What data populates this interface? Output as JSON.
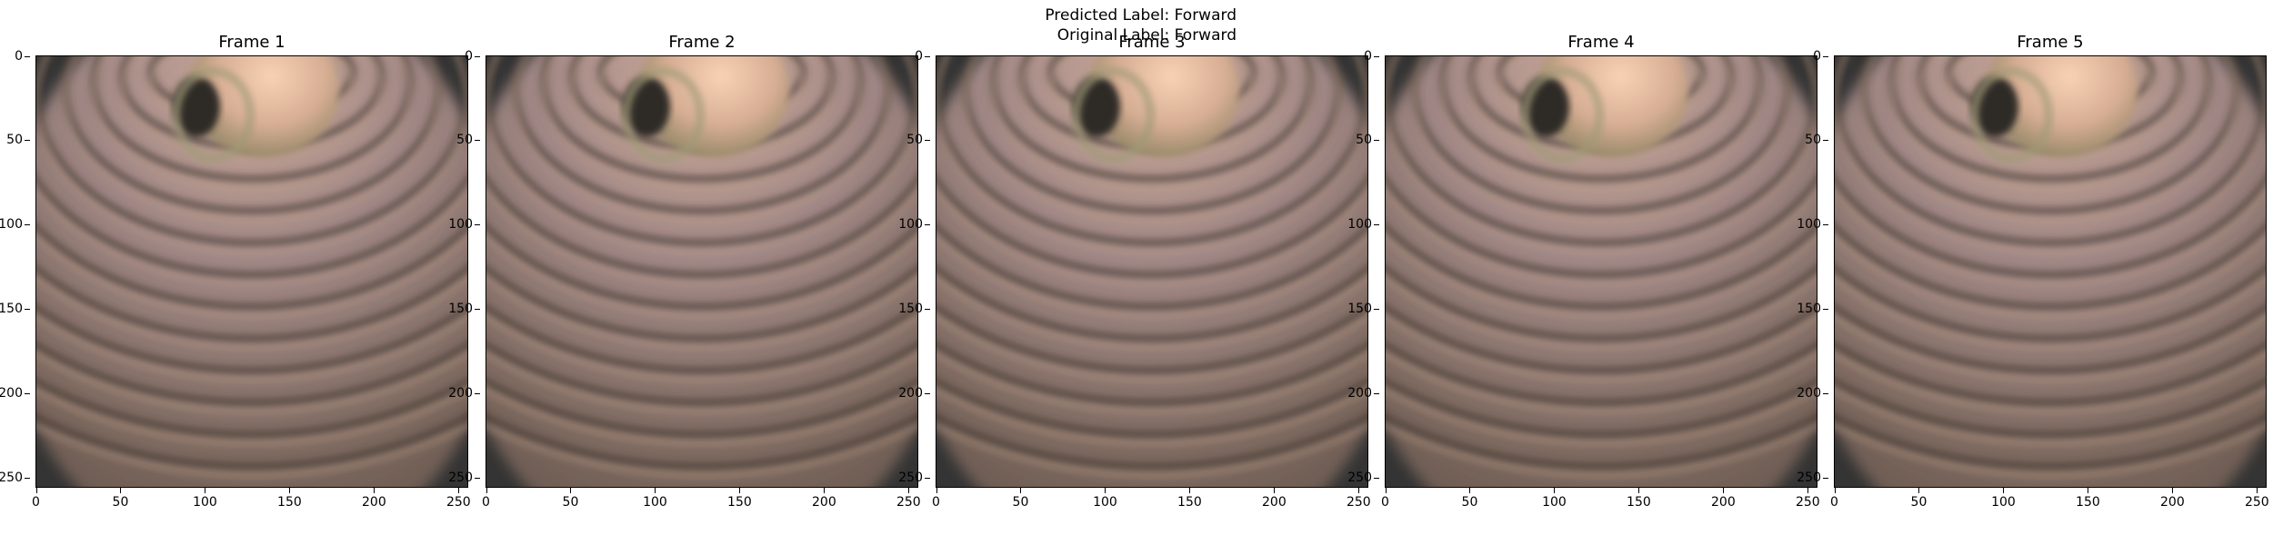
{
  "suptitle": {
    "predicted": "Predicted Label: Forward",
    "original": "Original Label: Forward"
  },
  "frames": [
    {
      "title": "Frame 1"
    },
    {
      "title": "Frame 2"
    },
    {
      "title": "Frame 3"
    },
    {
      "title": "Frame 4"
    },
    {
      "title": "Frame 5"
    }
  ],
  "axes": {
    "x_ticks": [
      "0",
      "50",
      "100",
      "150",
      "200",
      "250"
    ],
    "y_ticks": [
      "0",
      "50",
      "100",
      "150",
      "200",
      "250"
    ],
    "x_range": [
      0,
      255
    ],
    "y_range": [
      0,
      255
    ]
  },
  "colors": {
    "background_dark": "#343434",
    "tissue_pink": "#9a7e7d",
    "tissue_brown": "#6f5e53",
    "lumen_highlight": "#f1c7a8"
  }
}
